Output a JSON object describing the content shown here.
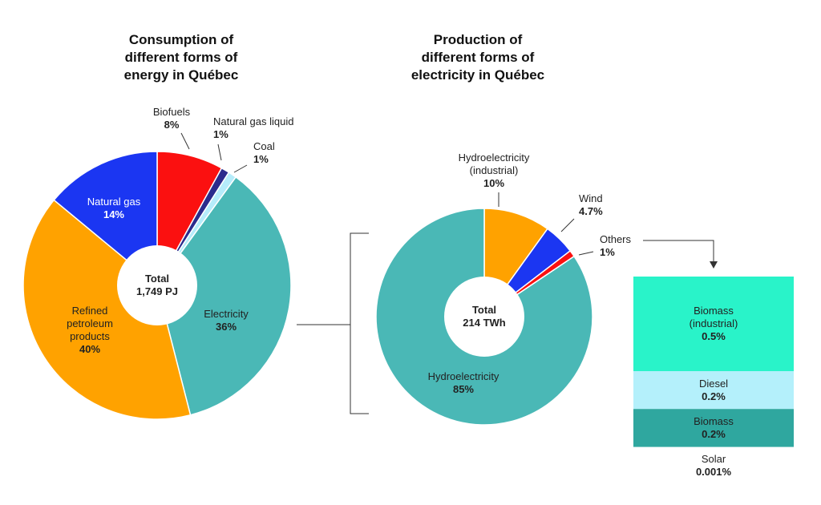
{
  "chart_data": [
    {
      "type": "pie",
      "title": "Consumption of different forms of energy in Québec",
      "annotations": [
        "Total",
        "1,749 PJ"
      ],
      "categories": [
        "Biofuels",
        "Natural gas liquid",
        "Coal",
        "Electricity",
        "Refined petroleum products",
        "Natural gas"
      ],
      "values": [
        8,
        1,
        1,
        36,
        40,
        14
      ],
      "value_labels": [
        "8%",
        "1%",
        "1%",
        "36%",
        "40%",
        "14%"
      ],
      "colors": [
        "#fb1010",
        "#2b2b8c",
        "#b5ecfa",
        "#4ab8b6",
        "#ffa200",
        "#1b36f2"
      ]
    },
    {
      "type": "pie",
      "title": "Production of different forms of electricity in Québec",
      "annotations": [
        "Total",
        "214 TWh"
      ],
      "categories": [
        "Hydroelectricity (industrial)",
        "Wind",
        "Others",
        "Hydroelectricity"
      ],
      "values": [
        10,
        4.7,
        1,
        85
      ],
      "value_labels": [
        "10%",
        "4.7%",
        "1%",
        "85%"
      ],
      "colors": [
        "#ffa200",
        "#1b36f2",
        "#fb1010",
        "#4ab8b6"
      ]
    },
    {
      "type": "stacked-bar",
      "categories": [
        "Biomass (industrial)",
        "Diesel",
        "Biomass",
        "Solar"
      ],
      "values": [
        0.5,
        0.2,
        0.2,
        0.001
      ],
      "value_labels": [
        "0.5%",
        "0.2%",
        "0.2%",
        "0.001%"
      ],
      "colors": [
        "#29f3c9",
        "#b4f0fb",
        "#2fa79f",
        "#2fa79f"
      ]
    }
  ]
}
